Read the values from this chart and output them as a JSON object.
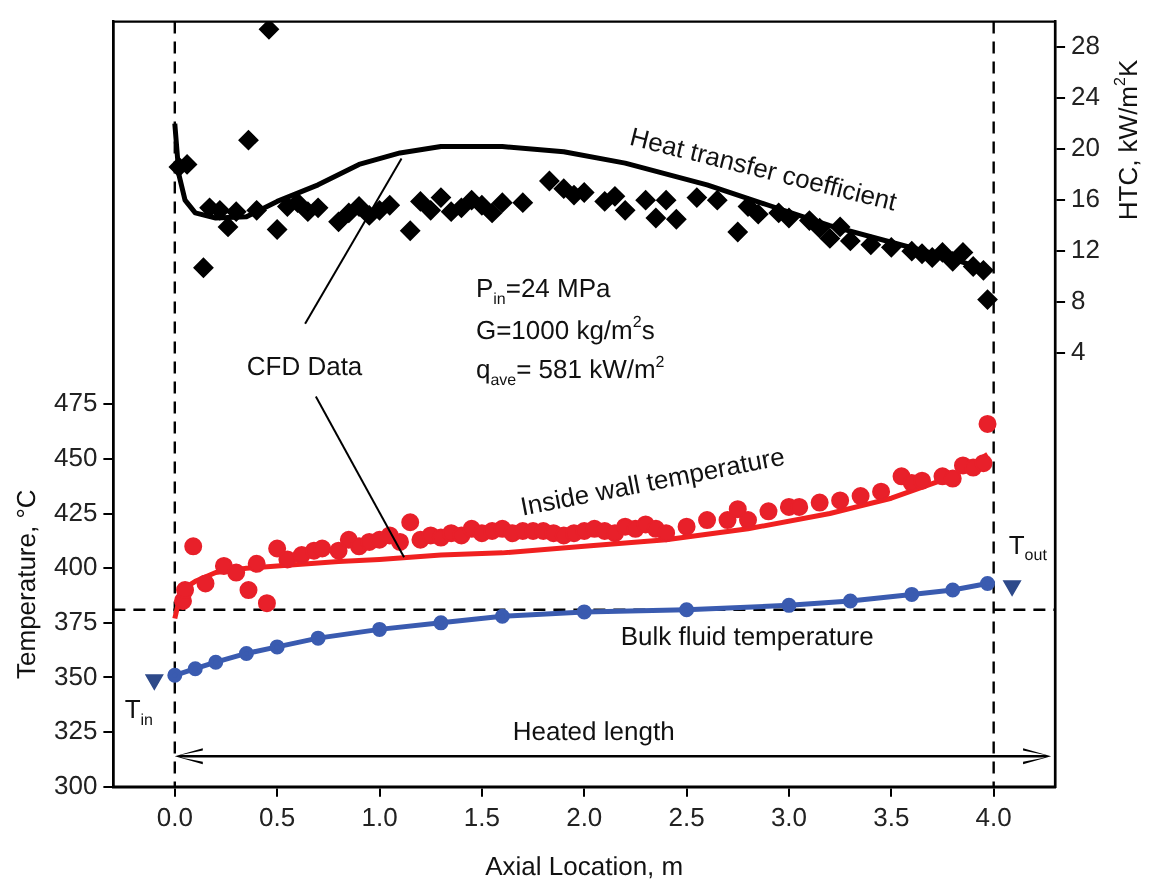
{
  "chart_data": {
    "type": "line",
    "xlabel": "Axial Location, m",
    "ylabel": "Temperature, °C",
    "y2label": "HTC, kW/m$^{2}$K",
    "xlim": [
      -0.3,
      4.3
    ],
    "xticks": [
      {
        "value": 0,
        "label": "0.0"
      },
      {
        "value": 0.5,
        "label": "0.5"
      },
      {
        "value": 1,
        "label": "1.0"
      },
      {
        "value": 1.5,
        "label": "1.5"
      },
      {
        "value": 2,
        "label": "2.0"
      },
      {
        "value": 2.5,
        "label": "2.5"
      },
      {
        "value": 3,
        "label": "3.0"
      },
      {
        "value": 3.5,
        "label": "3.5"
      },
      {
        "value": 4,
        "label": "4.0"
      }
    ],
    "ylim": [
      300,
      650
    ],
    "yticks": [
      300,
      325,
      350,
      375,
      400,
      425,
      450,
      475
    ],
    "y2lim": [
      -30,
      30
    ],
    "y2ticks": [
      4,
      8,
      12,
      16,
      20,
      24,
      28
    ],
    "grid": false,
    "legend": false,
    "series": [
      {
        "type": "scatter",
        "marker": "diamond",
        "color": "#000000",
        "axis": "y2",
        "x": [
          0.02,
          0.06,
          0.14,
          0.17,
          0.22,
          0.26,
          0.3,
          0.36,
          0.4,
          0.46,
          0.5,
          0.55,
          0.6,
          0.65,
          0.7,
          0.8,
          0.85,
          0.9,
          0.95,
          1.0,
          1.05,
          1.15,
          1.2,
          1.25,
          1.3,
          1.35,
          1.4,
          1.45,
          1.5,
          1.55,
          1.6,
          1.7,
          1.83,
          1.9,
          1.95,
          2.0,
          2.1,
          2.15,
          2.2,
          2.3,
          2.35,
          2.4,
          2.45,
          2.55,
          2.65,
          2.75,
          2.8,
          2.85,
          2.95,
          3.0,
          3.1,
          3.15,
          3.2,
          3.25,
          3.3,
          3.4,
          3.5,
          3.6,
          3.65,
          3.7,
          3.75,
          3.8,
          3.85,
          3.9,
          3.95,
          3.97
        ],
        "values": [
          18.6,
          18.8,
          10.7,
          15.4,
          15.2,
          13.9,
          15.1,
          20.7,
          15.2,
          29.4,
          13.7,
          15.5,
          15.8,
          15.1,
          15.4,
          14.3,
          15.0,
          15.5,
          14.8,
          15.2,
          15.6,
          13.6,
          15.9,
          15.2,
          16.2,
          15.1,
          15.4,
          16.0,
          15.6,
          15.0,
          15.8,
          15.8,
          17.5,
          16.9,
          16.4,
          16.6,
          15.9,
          16.3,
          15.2,
          16.0,
          14.6,
          16.0,
          14.5,
          16.2,
          16.0,
          13.5,
          15.5,
          14.9,
          15.0,
          14.6,
          14.4,
          13.8,
          13.0,
          13.9,
          12.8,
          12.5,
          12.3,
          12.0,
          11.8,
          11.5,
          11.9,
          11.2,
          11.9,
          10.8,
          10.5,
          8.2
        ]
      },
      {
        "type": "line",
        "marker": "none",
        "color": "#000000",
        "axis": "y2",
        "x": [
          0,
          0.02,
          0.05,
          0.1,
          0.2,
          0.35,
          0.5,
          0.7,
          0.9,
          1.1,
          1.3,
          1.6,
          1.9,
          2.2,
          2.6,
          2.9,
          3.2,
          3.5,
          3.8,
          3.97
        ],
        "values": [
          22,
          18,
          16,
          15,
          14.6,
          14.7,
          15.9,
          17.2,
          18.8,
          19.7,
          20.2,
          20.2,
          19.8,
          18.9,
          17.2,
          15.6,
          14.0,
          12.7,
          11.4,
          10.5
        ]
      },
      {
        "type": "scatter",
        "marker": "circle",
        "color": "#e8202a",
        "x": [
          0.04,
          0.05,
          0.09,
          0.15,
          0.24,
          0.3,
          0.36,
          0.4,
          0.45,
          0.5,
          0.55,
          0.62,
          0.68,
          0.72,
          0.8,
          0.85,
          0.9,
          0.95,
          1.0,
          1.05,
          1.1,
          1.15,
          1.2,
          1.25,
          1.3,
          1.35,
          1.4,
          1.45,
          1.5,
          1.55,
          1.6,
          1.65,
          1.7,
          1.75,
          1.8,
          1.85,
          1.9,
          1.95,
          2.0,
          2.05,
          2.1,
          2.15,
          2.2,
          2.25,
          2.3,
          2.35,
          2.4,
          2.5,
          2.6,
          2.7,
          2.75,
          2.8,
          2.9,
          3.0,
          3.05,
          3.15,
          3.25,
          3.35,
          3.45,
          3.55,
          3.6,
          3.65,
          3.75,
          3.8,
          3.85,
          3.9,
          3.95,
          3.97
        ],
        "values": [
          385,
          390,
          410,
          393,
          401,
          398,
          390,
          402,
          384,
          409,
          404,
          406,
          408,
          409,
          408,
          413,
          410,
          412,
          413,
          415,
          412,
          421,
          413,
          415,
          414,
          416,
          415,
          418,
          416,
          417,
          418,
          416,
          417,
          417,
          417,
          416,
          415,
          416,
          417,
          418,
          417,
          416,
          419,
          418,
          420,
          418,
          416,
          419,
          422,
          422,
          427,
          422,
          426,
          428,
          428,
          430,
          431,
          433,
          435,
          442,
          439,
          440,
          442,
          441,
          447,
          446,
          448,
          466
        ]
      },
      {
        "type": "line",
        "marker": "none",
        "color": "#f02020",
        "x": [
          0,
          0.02,
          0.05,
          0.1,
          0.2,
          0.35,
          0.5,
          0.8,
          1.0,
          1.3,
          1.6,
          2.0,
          2.4,
          2.8,
          3.2,
          3.5,
          3.8,
          3.97
        ],
        "values": [
          377,
          385,
          391,
          394,
          398,
          400,
          401,
          403,
          404,
          406,
          407,
          410,
          413,
          418,
          425,
          432,
          442,
          452
        ]
      },
      {
        "type": "line",
        "marker": "circle",
        "color": "#3a5bb0",
        "x": [
          0,
          0.1,
          0.2,
          0.35,
          0.5,
          0.7,
          1.0,
          1.3,
          1.6,
          2.0,
          2.5,
          3.0,
          3.3,
          3.6,
          3.8,
          3.97
        ],
        "values": [
          351,
          354,
          357,
          361,
          364,
          368,
          372,
          375,
          378,
          380,
          381,
          383,
          385,
          388,
          390,
          393
        ]
      },
      {
        "type": "scatter",
        "marker": "triangle",
        "color": "#2e4a8a",
        "x": [
          -0.1,
          4.09
        ],
        "values": [
          349,
          392
        ]
      }
    ],
    "ref_lines": [
      {
        "axis": "x",
        "value": 0,
        "color": "#000000",
        "line_style": "dashed"
      },
      {
        "axis": "x",
        "value": 4,
        "color": "#000000",
        "line_style": "dashed"
      },
      {
        "axis": "y",
        "value": 381,
        "color": "#000000",
        "line_style": "dashed"
      }
    ],
    "annotations": [
      "Heat transfer coefficient",
      "Inside wall temperature",
      "Bulk fluid temperature",
      {
        "text": "CFD Data",
        "x": 1.12,
        "y": 405
      },
      "P$_{in}$=24 MPa",
      "G=1000 kg/m$^{2}$s",
      "q$_{ave}$= 581 kW/m$^{2}$",
      "T$_{in}$",
      "T$_{out}$",
      "Heated length"
    ]
  }
}
